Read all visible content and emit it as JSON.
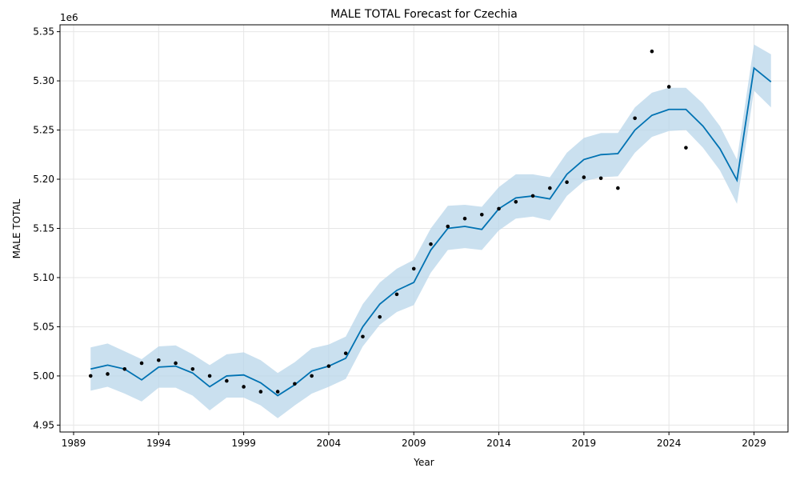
{
  "chart_data": {
    "type": "line",
    "title": "MALE TOTAL Forecast for Czechia",
    "xlabel": "Year",
    "ylabel": "MALE TOTAL",
    "y_offset_label": "1e6",
    "y_scale": 1000000,
    "xlim": [
      1988.2,
      2031.0
    ],
    "ylim": [
      4943000,
      5357000
    ],
    "x_ticks": [
      1989,
      1994,
      1999,
      2004,
      2009,
      2014,
      2019,
      2024,
      2029
    ],
    "y_ticks": [
      4950000,
      5000000,
      5050000,
      5100000,
      5150000,
      5200000,
      5250000,
      5300000,
      5350000
    ],
    "y_tick_labels": [
      "4.95",
      "5.00",
      "5.05",
      "5.10",
      "5.15",
      "5.20",
      "5.25",
      "5.30",
      "5.35"
    ],
    "grid": true,
    "colors": {
      "forecast": "#0072b2",
      "band": "#b8d6ea",
      "actual": "#000000",
      "grid": "#e6e6e6"
    },
    "series": [
      {
        "kind": "forecast",
        "x": [
          1990,
          1991,
          1992,
          1993,
          1994,
          1995,
          1996,
          1997,
          1998,
          1999,
          2000,
          2001,
          2002,
          2003,
          2004,
          2005,
          2006,
          2007,
          2008,
          2009,
          2010,
          2011,
          2012,
          2013,
          2014,
          2015,
          2016,
          2017,
          2018,
          2019,
          2020,
          2021,
          2022,
          2023,
          2024,
          2025,
          2026,
          2027,
          2028,
          2029,
          2030
        ],
        "y": [
          5007000,
          5011000,
          5007000,
          4996000,
          5009000,
          5010000,
          5003000,
          4989000,
          5000000,
          5001000,
          4993000,
          4980000,
          4991000,
          5005000,
          5010000,
          5018000,
          5050000,
          5073000,
          5087000,
          5095000,
          5128000,
          5150000,
          5152000,
          5149000,
          5170000,
          5181000,
          5183000,
          5180000,
          5205000,
          5220000,
          5225000,
          5226000,
          5250000,
          5265000,
          5271000,
          5271000,
          5254000,
          5231000,
          5199000,
          5313000,
          5299000
        ],
        "lower": [
          4985000,
          4989000,
          4982000,
          4974000,
          4988000,
          4988000,
          4980000,
          4965000,
          4978000,
          4978000,
          4970000,
          4957000,
          4970000,
          4982000,
          4989000,
          4997000,
          5030000,
          5052000,
          5065000,
          5072000,
          5105000,
          5128000,
          5130000,
          5128000,
          5148000,
          5160000,
          5162000,
          5158000,
          5183000,
          5198000,
          5202000,
          5203000,
          5227000,
          5243000,
          5249000,
          5250000,
          5232000,
          5209000,
          5175000,
          5290000,
          5273000
        ],
        "upper": [
          5029000,
          5033000,
          5025000,
          5017000,
          5030000,
          5031000,
          5022000,
          5011000,
          5022000,
          5024000,
          5016000,
          5003000,
          5014000,
          5028000,
          5032000,
          5040000,
          5073000,
          5095000,
          5109000,
          5118000,
          5150000,
          5173000,
          5174000,
          5172000,
          5192000,
          5205000,
          5205000,
          5202000,
          5227000,
          5242000,
          5247000,
          5247000,
          5273000,
          5288000,
          5293000,
          5293000,
          5277000,
          5254000,
          5220000,
          5337000,
          5327000
        ]
      },
      {
        "kind": "actual",
        "x": [
          1990,
          1991,
          1992,
          1993,
          1994,
          1995,
          1996,
          1997,
          1998,
          1999,
          2000,
          2001,
          2002,
          2003,
          2004,
          2005,
          2006,
          2007,
          2008,
          2009,
          2010,
          2011,
          2012,
          2013,
          2014,
          2015,
          2016,
          2017,
          2018,
          2019,
          2020,
          2021,
          2022,
          2023,
          2024,
          2025
        ],
        "y": [
          5000000,
          5002000,
          5007000,
          5013000,
          5016000,
          5013000,
          5007000,
          5000000,
          4995000,
          4989000,
          4984000,
          4984000,
          4992000,
          5000000,
          5010000,
          5023000,
          5040000,
          5060000,
          5083000,
          5109000,
          5134000,
          5152000,
          5160000,
          5164000,
          5170000,
          5177000,
          5183000,
          5191000,
          5197000,
          5202000,
          5201000,
          5191000,
          5262000,
          5330000,
          5294000,
          5232000
        ]
      }
    ]
  }
}
